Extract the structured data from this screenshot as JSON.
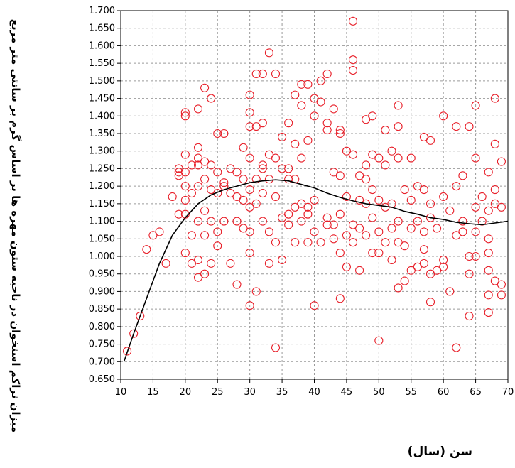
{
  "chart_data": {
    "type": "scatter",
    "xlabel": "سن (سال)",
    "ylabel": "میزان تراکم استخوان در ناحیه ستون مهره ها بر اساس گرم بر سانتی متر مربع",
    "xlim": [
      10,
      70
    ],
    "ylim": [
      0.65,
      1.7
    ],
    "x_ticks": [
      "10",
      "15",
      "20",
      "25",
      "30",
      "35",
      "40",
      "45",
      "50",
      "55",
      "60",
      "65",
      "70"
    ],
    "y_ticks": [
      "0.650",
      "0.700",
      "0.750",
      "0.800",
      "0.850",
      "0.900",
      "0.950",
      "1.000",
      "1.050",
      "1.100",
      "1.150",
      "1.200",
      "1.250",
      "1.300",
      "1.350",
      "1.400",
      "1.450",
      "1.500",
      "1.550",
      "1.600",
      "1.650",
      "1.700"
    ],
    "grid": true,
    "marker_color": "#e8202a",
    "curve_color": "#000000",
    "series": [
      {
        "points": [
          [
            11,
            0.73
          ],
          [
            12,
            0.78
          ],
          [
            13,
            0.83
          ],
          [
            14,
            1.02
          ],
          [
            15,
            1.06
          ],
          [
            16,
            1.07
          ],
          [
            17,
            0.98
          ],
          [
            18,
            1.17
          ],
          [
            19,
            1.24
          ],
          [
            19,
            1.25
          ],
          [
            19,
            1.23
          ],
          [
            19,
            1.12
          ],
          [
            20,
            1.41
          ],
          [
            20,
            1.4
          ],
          [
            20,
            1.29
          ],
          [
            20,
            1.24
          ],
          [
            20,
            1.2
          ],
          [
            20,
            1.16
          ],
          [
            20,
            1.12
          ],
          [
            20,
            1.01
          ],
          [
            21,
            1.26
          ],
          [
            21,
            1.18
          ],
          [
            21,
            1.06
          ],
          [
            21,
            0.98
          ],
          [
            22,
            1.42
          ],
          [
            22,
            1.31
          ],
          [
            22,
            1.28
          ],
          [
            22,
            1.26
          ],
          [
            22,
            1.2
          ],
          [
            22,
            1.1
          ],
          [
            22,
            0.99
          ],
          [
            22,
            0.94
          ],
          [
            23,
            1.48
          ],
          [
            23,
            1.27
          ],
          [
            23,
            1.22
          ],
          [
            23,
            1.13
          ],
          [
            23,
            1.06
          ],
          [
            23,
            0.95
          ],
          [
            24,
            1.45
          ],
          [
            24,
            1.26
          ],
          [
            24,
            1.19
          ],
          [
            24,
            1.1
          ],
          [
            24,
            0.98
          ],
          [
            25,
            1.35
          ],
          [
            25,
            1.24
          ],
          [
            25,
            1.18
          ],
          [
            25,
            1.07
          ],
          [
            25,
            1.03
          ],
          [
            26,
            1.35
          ],
          [
            26,
            1.21
          ],
          [
            26,
            1.2
          ],
          [
            26,
            1.1
          ],
          [
            27,
            1.25
          ],
          [
            27,
            1.18
          ],
          [
            27,
            0.98
          ],
          [
            28,
            1.24
          ],
          [
            28,
            1.17
          ],
          [
            28,
            1.1
          ],
          [
            28,
            0.92
          ],
          [
            29,
            1.31
          ],
          [
            29,
            1.22
          ],
          [
            29,
            1.16
          ],
          [
            29,
            1.08
          ],
          [
            30,
            1.46
          ],
          [
            30,
            1.41
          ],
          [
            30,
            1.37
          ],
          [
            30,
            1.28
          ],
          [
            30,
            1.19
          ],
          [
            30,
            1.14
          ],
          [
            30,
            1.07
          ],
          [
            30,
            1.01
          ],
          [
            30,
            0.86
          ],
          [
            31,
            1.52
          ],
          [
            31,
            1.37
          ],
          [
            31,
            1.22
          ],
          [
            31,
            1.15
          ],
          [
            31,
            0.9
          ],
          [
            32,
            1.52
          ],
          [
            32,
            1.38
          ],
          [
            32,
            1.26
          ],
          [
            32,
            1.25
          ],
          [
            32,
            1.18
          ],
          [
            32,
            1.1
          ],
          [
            33,
            1.58
          ],
          [
            33,
            1.29
          ],
          [
            33,
            1.22
          ],
          [
            33,
            1.07
          ],
          [
            33,
            0.98
          ],
          [
            34,
            1.52
          ],
          [
            34,
            1.28
          ],
          [
            34,
            1.17
          ],
          [
            34,
            1.04
          ],
          [
            34,
            0.74
          ],
          [
            35,
            1.34
          ],
          [
            35,
            1.25
          ],
          [
            35,
            1.11
          ],
          [
            35,
            0.99
          ],
          [
            36,
            1.38
          ],
          [
            36,
            1.25
          ],
          [
            36,
            1.22
          ],
          [
            36,
            1.12
          ],
          [
            36,
            1.09
          ],
          [
            37,
            1.46
          ],
          [
            37,
            1.32
          ],
          [
            37,
            1.22
          ],
          [
            37,
            1.14
          ],
          [
            37,
            1.04
          ],
          [
            38,
            1.49
          ],
          [
            38,
            1.43
          ],
          [
            38,
            1.28
          ],
          [
            38,
            1.15
          ],
          [
            38,
            1.1
          ],
          [
            39,
            1.49
          ],
          [
            39,
            1.33
          ],
          [
            39,
            1.14
          ],
          [
            39,
            1.12
          ],
          [
            39,
            1.04
          ],
          [
            40,
            1.45
          ],
          [
            40,
            1.4
          ],
          [
            40,
            1.16
          ],
          [
            40,
            1.07
          ],
          [
            40,
            0.86
          ],
          [
            41,
            1.5
          ],
          [
            41,
            1.44
          ],
          [
            41,
            1.04
          ],
          [
            42,
            1.52
          ],
          [
            42,
            1.38
          ],
          [
            42,
            1.36
          ],
          [
            42,
            1.11
          ],
          [
            42,
            1.09
          ],
          [
            43,
            1.42
          ],
          [
            43,
            1.24
          ],
          [
            43,
            1.09
          ],
          [
            43,
            1.05
          ],
          [
            44,
            1.36
          ],
          [
            44,
            1.35
          ],
          [
            44,
            1.23
          ],
          [
            44,
            1.12
          ],
          [
            44,
            1.01
          ],
          [
            44,
            0.88
          ],
          [
            45,
            1.3
          ],
          [
            45,
            1.17
          ],
          [
            45,
            1.06
          ],
          [
            45,
            0.97
          ],
          [
            46,
            1.67
          ],
          [
            46,
            1.56
          ],
          [
            46,
            1.53
          ],
          [
            46,
            1.29
          ],
          [
            46,
            1.09
          ],
          [
            46,
            1.04
          ],
          [
            47,
            1.23
          ],
          [
            47,
            1.16
          ],
          [
            47,
            1.08
          ],
          [
            47,
            0.96
          ],
          [
            48,
            1.39
          ],
          [
            48,
            1.26
          ],
          [
            48,
            1.22
          ],
          [
            48,
            1.15
          ],
          [
            48,
            1.06
          ],
          [
            49,
            1.4
          ],
          [
            49,
            1.29
          ],
          [
            49,
            1.19
          ],
          [
            49,
            1.11
          ],
          [
            49,
            1.01
          ],
          [
            50,
            1.28
          ],
          [
            50,
            1.16
          ],
          [
            50,
            1.07
          ],
          [
            50,
            1.01
          ],
          [
            50,
            0.76
          ],
          [
            51,
            1.36
          ],
          [
            51,
            1.26
          ],
          [
            51,
            1.14
          ],
          [
            51,
            1.04
          ],
          [
            52,
            1.3
          ],
          [
            52,
            1.15
          ],
          [
            52,
            1.08
          ],
          [
            52,
            0.99
          ],
          [
            53,
            1.43
          ],
          [
            53,
            1.37
          ],
          [
            53,
            1.28
          ],
          [
            53,
            1.1
          ],
          [
            53,
            1.04
          ],
          [
            53,
            0.91
          ],
          [
            54,
            1.19
          ],
          [
            54,
            1.03
          ],
          [
            54,
            0.93
          ],
          [
            55,
            1.28
          ],
          [
            55,
            1.16
          ],
          [
            55,
            1.08
          ],
          [
            55,
            0.96
          ],
          [
            56,
            1.2
          ],
          [
            56,
            1.1
          ],
          [
            56,
            0.97
          ],
          [
            57,
            1.34
          ],
          [
            57,
            1.19
          ],
          [
            57,
            1.07
          ],
          [
            57,
            1.02
          ],
          [
            57,
            0.98
          ],
          [
            58,
            1.33
          ],
          [
            58,
            1.15
          ],
          [
            58,
            1.11
          ],
          [
            58,
            0.95
          ],
          [
            58,
            0.87
          ],
          [
            59,
            1.08
          ],
          [
            59,
            0.96
          ],
          [
            60,
            1.4
          ],
          [
            60,
            1.17
          ],
          [
            60,
            0.99
          ],
          [
            60,
            0.97
          ],
          [
            61,
            1.13
          ],
          [
            61,
            0.9
          ],
          [
            62,
            1.37
          ],
          [
            62,
            1.2
          ],
          [
            62,
            1.06
          ],
          [
            62,
            0.74
          ],
          [
            63,
            1.23
          ],
          [
            63,
            1.1
          ],
          [
            63,
            1.07
          ],
          [
            64,
            1.37
          ],
          [
            64,
            1.0
          ],
          [
            64,
            0.95
          ],
          [
            64,
            0.83
          ],
          [
            65,
            1.43
          ],
          [
            65,
            1.28
          ],
          [
            65,
            1.14
          ],
          [
            65,
            1.07
          ],
          [
            65,
            1.0
          ],
          [
            66,
            1.17
          ],
          [
            66,
            1.1
          ],
          [
            67,
            1.24
          ],
          [
            67,
            1.13
          ],
          [
            67,
            1.05
          ],
          [
            67,
            1.01
          ],
          [
            67,
            0.96
          ],
          [
            67,
            0.89
          ],
          [
            67,
            0.84
          ],
          [
            68,
            1.45
          ],
          [
            68,
            1.32
          ],
          [
            68,
            1.19
          ],
          [
            68,
            1.15
          ],
          [
            68,
            0.93
          ],
          [
            69,
            1.27
          ],
          [
            69,
            1.14
          ],
          [
            69,
            0.92
          ],
          [
            69,
            0.89
          ]
        ]
      }
    ],
    "fit_curve": {
      "type": "polynomial",
      "points": [
        [
          10.5,
          0.7
        ],
        [
          12,
          0.78
        ],
        [
          14,
          0.88
        ],
        [
          16,
          0.98
        ],
        [
          18,
          1.06
        ],
        [
          20,
          1.11
        ],
        [
          22,
          1.15
        ],
        [
          24,
          1.175
        ],
        [
          26,
          1.19
        ],
        [
          28,
          1.2
        ],
        [
          30,
          1.21
        ],
        [
          32,
          1.215
        ],
        [
          34,
          1.218
        ],
        [
          36,
          1.215
        ],
        [
          38,
          1.205
        ],
        [
          40,
          1.195
        ],
        [
          42,
          1.18
        ],
        [
          44,
          1.168
        ],
        [
          46,
          1.158
        ],
        [
          48,
          1.15
        ],
        [
          50,
          1.145
        ],
        [
          52,
          1.14
        ],
        [
          54,
          1.128
        ],
        [
          56,
          1.12
        ],
        [
          58,
          1.11
        ],
        [
          60,
          1.105
        ],
        [
          62,
          1.097
        ],
        [
          64,
          1.093
        ],
        [
          66,
          1.09
        ],
        [
          68,
          1.095
        ],
        [
          70,
          1.1
        ]
      ]
    }
  }
}
